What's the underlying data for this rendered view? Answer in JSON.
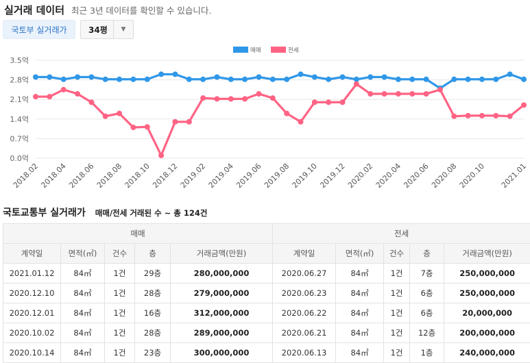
{
  "header": {
    "title": "실거래 데이터",
    "subtitle": "최근 3년 데이터를 확인할 수 있습니다."
  },
  "controls": {
    "source_button": "국토부 실거래가",
    "area_value": "34평",
    "caret_icon": "chevron-down-icon"
  },
  "chart_data": {
    "type": "line",
    "title": "",
    "xlabel": "",
    "ylabel": "",
    "ylim": [
      0,
      3.5
    ],
    "y_ticks": [
      "0.0억",
      "0.7억",
      "1.4억",
      "2.1억",
      "2.8억",
      "3.5억"
    ],
    "y_tick_values": [
      0,
      0.7,
      1.4,
      2.1,
      2.8,
      3.5
    ],
    "x_ticks": [
      "2018.02",
      "2018.04",
      "2018.06",
      "2018.08",
      "2018.10",
      "2018.12",
      "2019.02",
      "2019.04",
      "2019.06",
      "2019.08",
      "2019.10",
      "2019.12",
      "2020.02",
      "2020.04",
      "2020.06",
      "2020.08",
      "2020.10",
      "2021.01"
    ],
    "legend_position": "top-center",
    "grid": true,
    "x": [
      "2018.02",
      "2018.03",
      "2018.04",
      "2018.05",
      "2018.06",
      "2018.07",
      "2018.08",
      "2018.09",
      "2018.10",
      "2018.11",
      "2018.12",
      "2019.01",
      "2019.02",
      "2019.03",
      "2019.04",
      "2019.05",
      "2019.06",
      "2019.07",
      "2019.08",
      "2019.09",
      "2019.10",
      "2019.11",
      "2019.12",
      "2020.01",
      "2020.02",
      "2020.03",
      "2020.04",
      "2020.05",
      "2020.06",
      "2020.07",
      "2020.08",
      "2020.09",
      "2020.10",
      "2020.11",
      "2020.12",
      "2021.01"
    ],
    "series": [
      {
        "name": "매매",
        "color": "#2f97e8",
        "values": [
          2.9,
          2.9,
          2.82,
          2.9,
          2.9,
          2.82,
          2.82,
          2.82,
          2.82,
          3.0,
          3.0,
          2.82,
          2.82,
          2.9,
          2.82,
          2.82,
          2.9,
          2.82,
          2.82,
          3.0,
          2.9,
          2.82,
          2.9,
          2.82,
          2.9,
          2.9,
          2.82,
          2.82,
          2.82,
          2.5,
          2.82,
          2.82,
          2.82,
          2.82,
          3.0,
          2.82
        ]
      },
      {
        "name": "전세",
        "color": "#ff6384",
        "values": [
          2.2,
          2.2,
          2.45,
          2.3,
          2.0,
          1.5,
          1.6,
          1.1,
          1.12,
          0.1,
          1.3,
          1.3,
          2.15,
          2.12,
          2.12,
          2.12,
          2.3,
          2.15,
          1.6,
          1.3,
          2.0,
          2.0,
          2.0,
          2.65,
          2.3,
          2.3,
          2.3,
          2.3,
          2.3,
          2.45,
          1.5,
          1.52,
          1.52,
          1.52,
          1.5,
          1.9
        ]
      }
    ]
  },
  "section": {
    "title": "국토교통부 실거래가",
    "summary": "매매/전세 거래된 수 ~ 총 124건"
  },
  "table": {
    "group_headers": [
      "매매",
      "전세"
    ],
    "columns": [
      "계약일",
      "면적(㎡)",
      "건수",
      "층",
      "거래금액(만원)",
      "계약일",
      "면적(㎡)",
      "건수",
      "층",
      "거래금액(만원)"
    ],
    "rows": [
      [
        "2021.01.12",
        "84㎡",
        "1건",
        "29층",
        "280,000,000",
        "2020.06.27",
        "84㎡",
        "1건",
        "7층",
        "250,000,000"
      ],
      [
        "2020.12.10",
        "84㎡",
        "1건",
        "28층",
        "279,000,000",
        "2020.06.23",
        "84㎡",
        "1건",
        "6층",
        "250,000,000"
      ],
      [
        "2020.12.01",
        "84㎡",
        "1건",
        "16층",
        "312,000,000",
        "2020.06.22",
        "84㎡",
        "1건",
        "6층",
        "20,000,000"
      ],
      [
        "2020.10.02",
        "84㎡",
        "1건",
        "28층",
        "289,000,000",
        "2020.06.21",
        "84㎡",
        "1건",
        "12층",
        "200,000,000"
      ],
      [
        "2020.10.14",
        "84㎡",
        "1건",
        "23층",
        "300,000,000",
        "2020.06.13",
        "84㎡",
        "1건",
        "1층",
        "240,000,000"
      ]
    ]
  }
}
